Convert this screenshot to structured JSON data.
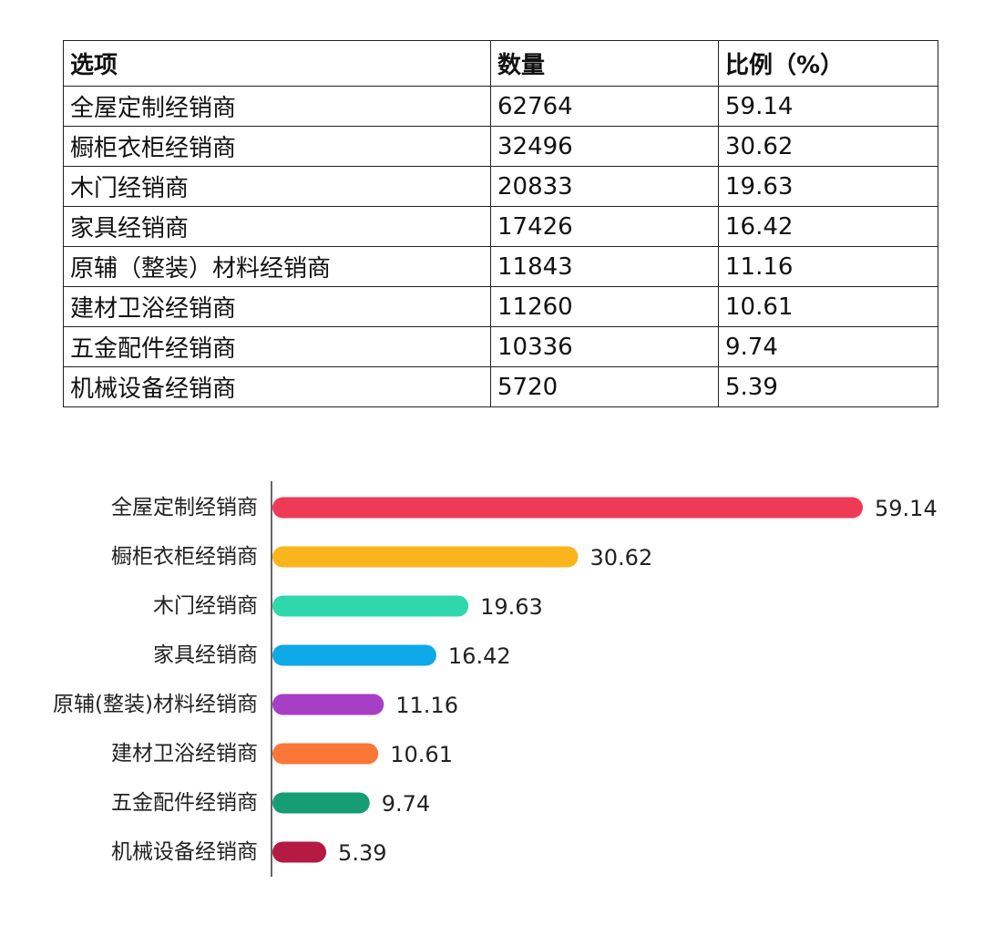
{
  "table": {
    "headers": [
      "选项",
      "数量",
      "比例（%）"
    ],
    "rows": [
      [
        "全屋定制经销商",
        "62764",
        "59.14"
      ],
      [
        "橱柜衣柜经销商",
        "32496",
        "30.62"
      ],
      [
        "木门经销商",
        "20833",
        "19.63"
      ],
      [
        "家具经销商",
        "17426",
        "16.42"
      ],
      [
        "原辅（整装）材料经销商",
        "11843",
        "11.16"
      ],
      [
        "建材卫浴经销商",
        "11260",
        "10.61"
      ],
      [
        "五金配件经销商",
        "10336",
        "9.74"
      ],
      [
        "机械设备经销商",
        "5720",
        "5.39"
      ]
    ]
  },
  "chart_data": {
    "type": "bar",
    "orientation": "horizontal",
    "title": "",
    "xlabel": "",
    "ylabel": "",
    "categories": [
      "全屋定制经销商",
      "橱柜衣柜经销商",
      "木门经销商",
      "家具经销商",
      "原辅(整装)材料经销商",
      "建材卫浴经销商",
      "五金配件经销商",
      "机械设备经销商"
    ],
    "value_labels": [
      "59.14",
      "30.62",
      "19.63",
      "16.42",
      "11.16",
      "10.61",
      "9.74",
      "5.39"
    ],
    "values": [
      59.14,
      30.62,
      19.63,
      16.42,
      11.16,
      10.61,
      9.74,
      5.39
    ],
    "colors": [
      "#EE3A57",
      "#FBB51C",
      "#2ED8AB",
      "#0EA8E6",
      "#A93EC6",
      "#FB7737",
      "#159D74",
      "#B41A42"
    ],
    "xlim": [
      0,
      59.14
    ],
    "grid": false,
    "legend": "none"
  }
}
